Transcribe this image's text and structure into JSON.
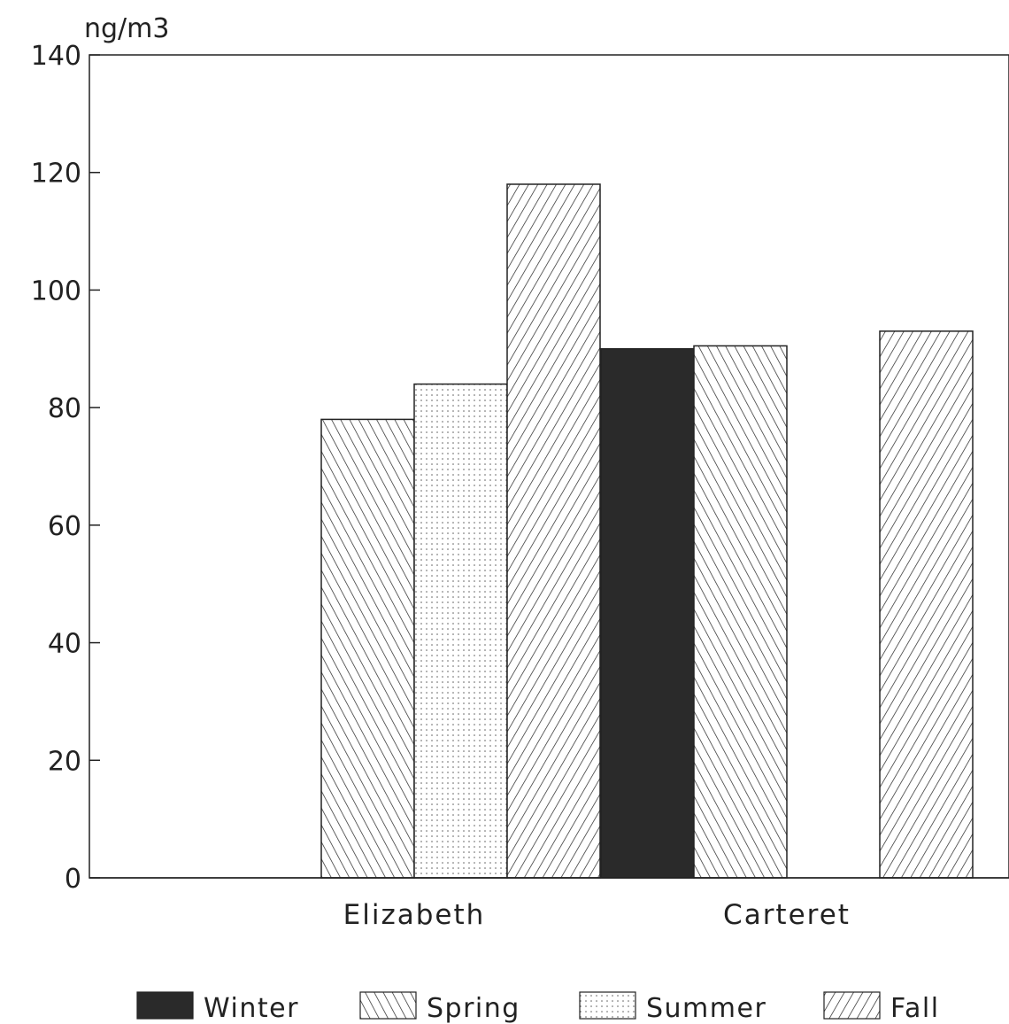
{
  "chart_data": {
    "type": "bar",
    "ylabel": "ng/m3",
    "ylim": [
      0,
      140
    ],
    "yticks": [
      0,
      20,
      40,
      60,
      80,
      100,
      120,
      140
    ],
    "categories": [
      "Elizabeth",
      "Carteret"
    ],
    "series": [
      {
        "name": "Winter",
        "values": [
          null,
          90
        ],
        "pattern": "solid"
      },
      {
        "name": "Spring",
        "values": [
          78,
          90.5
        ],
        "pattern": "back-diagonal"
      },
      {
        "name": "Summer",
        "values": [
          84,
          null
        ],
        "pattern": "dots"
      },
      {
        "name": "Fall",
        "values": [
          118,
          93
        ],
        "pattern": "forward-diagonal"
      }
    ],
    "legend_position": "bottom",
    "grid": false
  },
  "colors": {
    "ink": "#222222",
    "winter": "#2a2a2a"
  }
}
